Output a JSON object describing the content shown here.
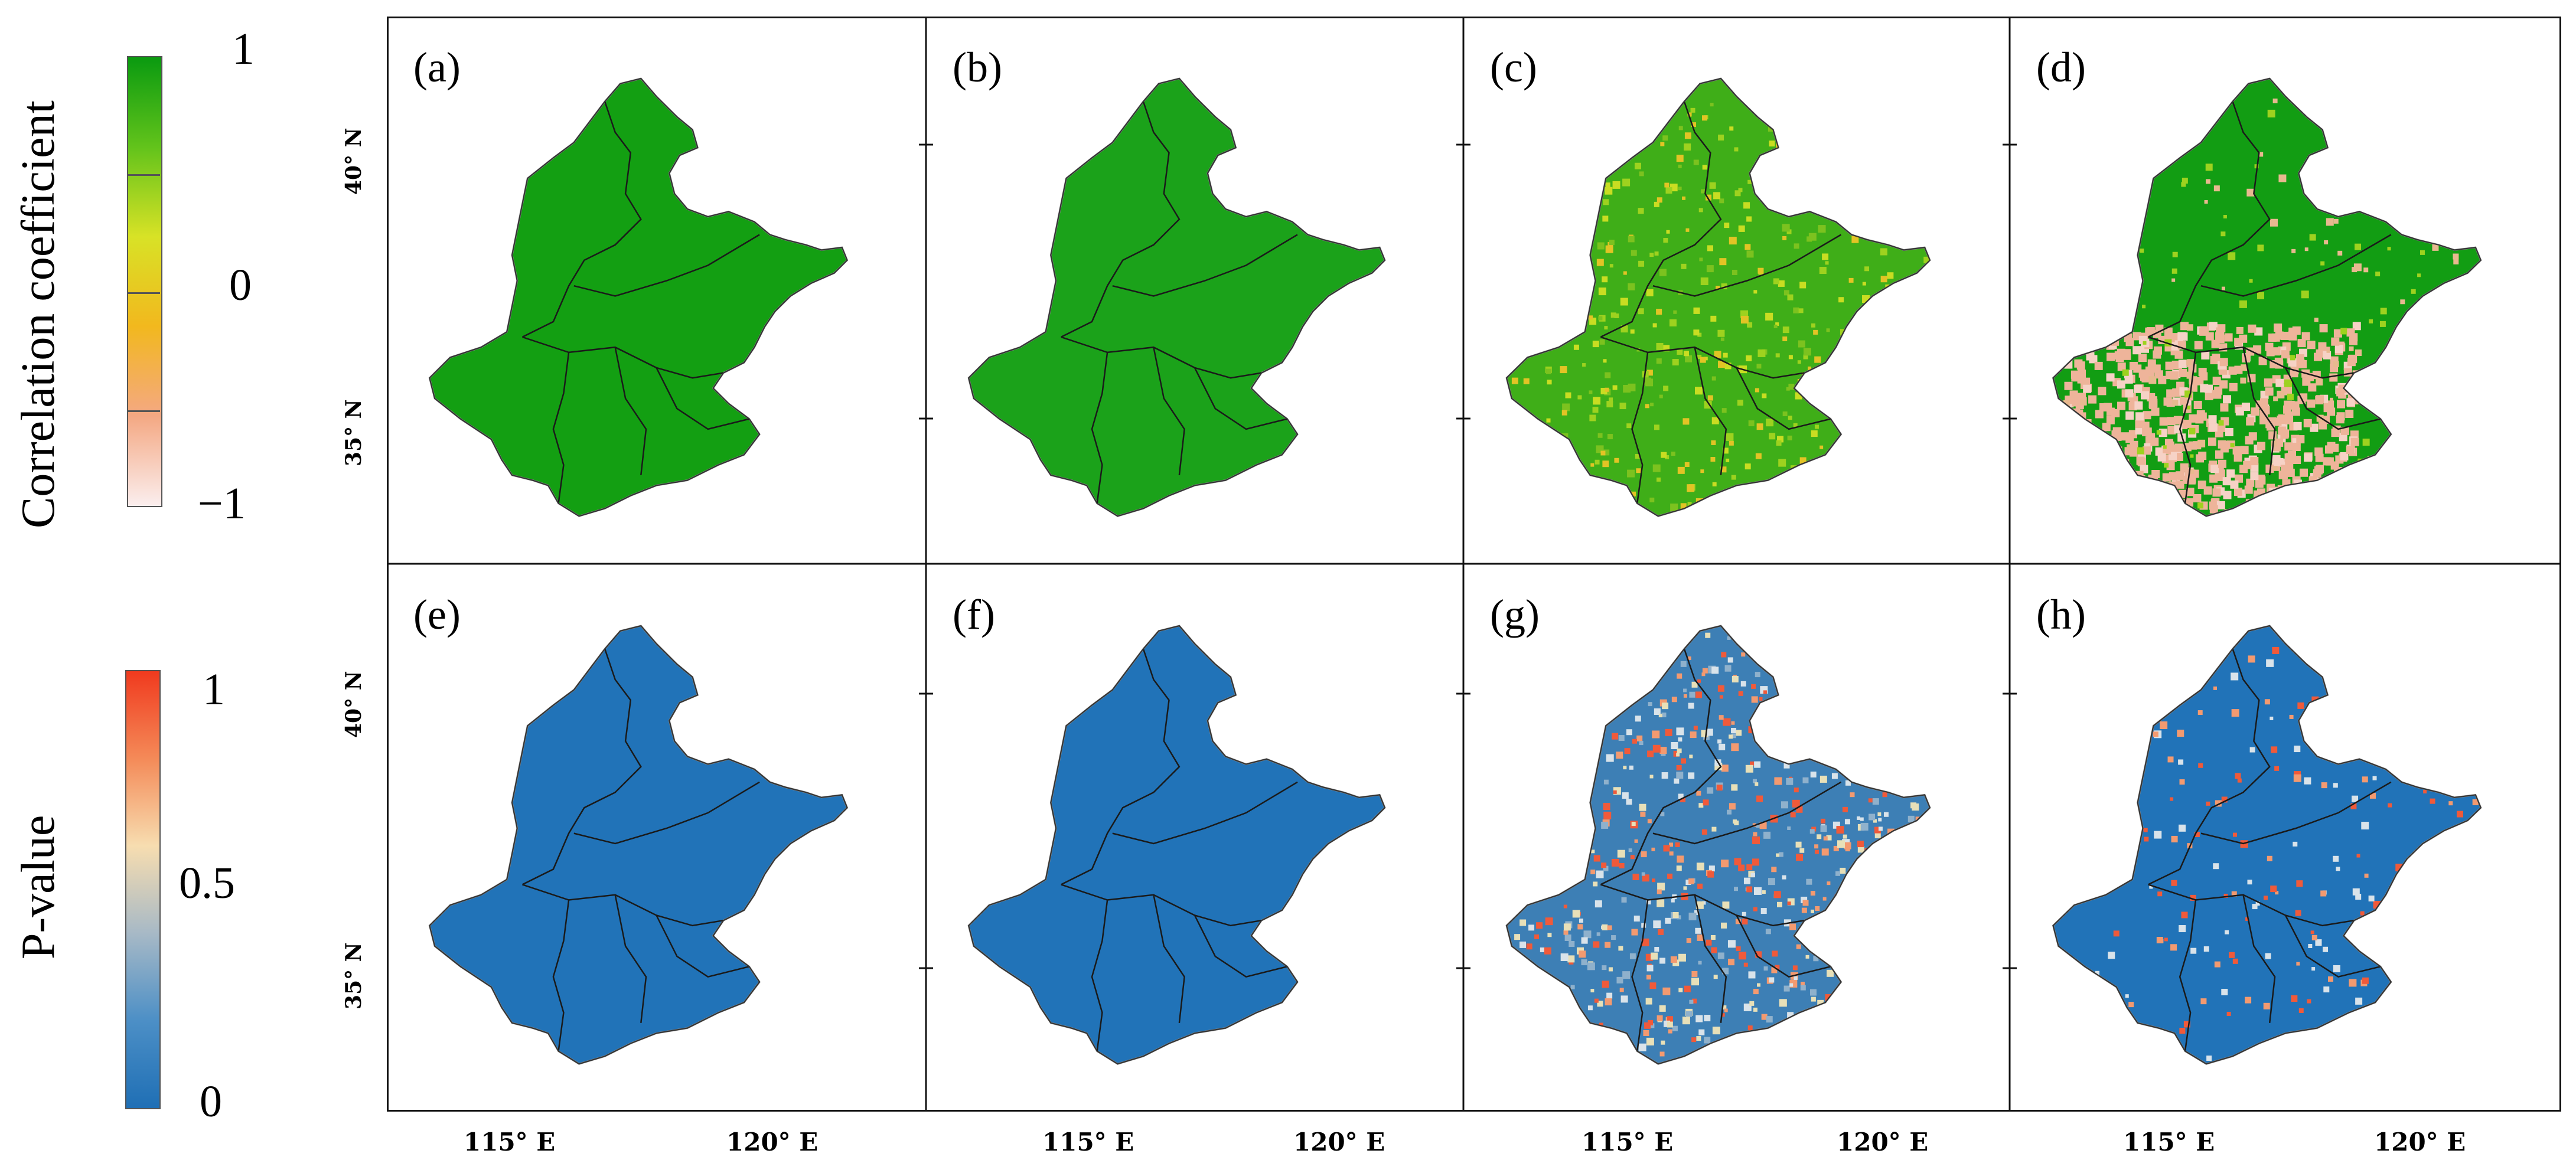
{
  "legends": {
    "correlation": {
      "title": "Correlation coefficient",
      "ticks": [
        "1",
        "0",
        "−1"
      ],
      "colors": [
        "#0a9a10",
        "#62c31b",
        "#d8e226",
        "#f2b81e",
        "#f4a883",
        "#fbeeee"
      ]
    },
    "pvalue": {
      "title": "P-value",
      "ticks": [
        "1",
        "0.5",
        "0"
      ],
      "colors": [
        "#f03a1e",
        "#f48a58",
        "#f7ddb0",
        "#a7b9c6",
        "#4c8fc6",
        "#1f6fb5"
      ]
    }
  },
  "axes": {
    "lon_ticks": [
      "115° E",
      "120° E"
    ],
    "lat_ticks": [
      "40° N",
      "35° N"
    ]
  },
  "panels": [
    {
      "label": "(a)",
      "variable": "correlation",
      "base_color": "#139f12",
      "speckle_colors": [],
      "speckle_count": 0,
      "low_patch_color": ""
    },
    {
      "label": "(b)",
      "variable": "correlation",
      "base_color": "#1ba21a",
      "speckle_colors": [],
      "speckle_count": 0,
      "low_patch_color": ""
    },
    {
      "label": "(c)",
      "variable": "correlation",
      "base_color": "#3fae18",
      "speckle_colors": [
        "#9ed21f",
        "#c9dd22",
        "#7cc21f",
        "#e2c425"
      ],
      "speckle_count": 900,
      "low_patch_color": ""
    },
    {
      "label": "(d)",
      "variable": "correlation",
      "base_color": "#129d13",
      "speckle_colors": [
        "#9ed21f",
        "#e8b98f"
      ],
      "speckle_count": 250,
      "low_patch_color": "#eeb49a"
    },
    {
      "label": "(e)",
      "variable": "pvalue",
      "base_color": "#2173b8",
      "speckle_colors": [],
      "speckle_count": 0,
      "low_patch_color": ""
    },
    {
      "label": "(f)",
      "variable": "pvalue",
      "base_color": "#2173b8",
      "speckle_colors": [],
      "speckle_count": 0,
      "low_patch_color": ""
    },
    {
      "label": "(g)",
      "variable": "pvalue",
      "base_color": "#3d7fb5",
      "speckle_colors": [
        "#e8e0b8",
        "#f05a3a",
        "#f39a70",
        "#8fb1cc",
        "#d9e3ea"
      ],
      "speckle_count": 1300,
      "low_patch_color": ""
    },
    {
      "label": "(h)",
      "variable": "pvalue",
      "base_color": "#2173b8",
      "speckle_colors": [
        "#f05a3a",
        "#f39a70",
        "#d9e3ea"
      ],
      "speckle_count": 400,
      "low_patch_color": ""
    }
  ]
}
